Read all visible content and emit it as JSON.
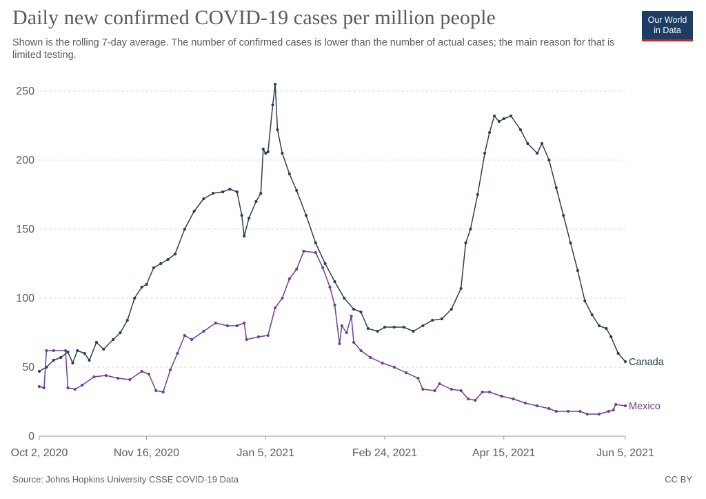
{
  "header": {
    "title": "Daily new confirmed COVID-19 cases per million people",
    "subtitle": "Shown is the rolling 7-day average. The number of confirmed cases is lower than the number of actual cases; the main reason for that is limited testing.",
    "logo_line1": "Our World",
    "logo_line2": "in Data"
  },
  "footer": {
    "source": "Source: Johns Hopkins University CSSE COVID-19 Data",
    "license": "CC BY"
  },
  "colors": {
    "canada": "#2c3e50",
    "mexico": "#6d3e91",
    "grid": "#dddddd",
    "axis": "#5b5b5b"
  },
  "chart_data": {
    "type": "line",
    "title": "Daily new confirmed COVID-19 cases per million people",
    "subtitle": "Shown is the rolling 7-day average. The number of confirmed cases is lower than the number of actual cases; the main reason for that is limited testing.",
    "xlabel": "",
    "ylabel": "",
    "x_range": [
      "2020-10-02",
      "2021-06-05"
    ],
    "ylim": [
      0,
      260
    ],
    "x_ticks": [
      "2020-10-02",
      "2020-11-16",
      "2021-01-05",
      "2021-02-24",
      "2021-04-15",
      "2021-06-05"
    ],
    "x_tick_labels": [
      "Oct 2, 2020",
      "Nov 16, 2020",
      "Jan 5, 2021",
      "Feb 24, 2021",
      "Apr 15, 2021",
      "Jun 5, 2021"
    ],
    "y_ticks": [
      0,
      50,
      100,
      150,
      200,
      250
    ],
    "grid": "horizontal dashed",
    "legend": "line-end labels",
    "series": [
      {
        "name": "Canada",
        "points": [
          [
            "2020-10-02",
            47
          ],
          [
            "2020-10-05",
            50
          ],
          [
            "2020-10-08",
            55
          ],
          [
            "2020-10-11",
            57
          ],
          [
            "2020-10-14",
            61
          ],
          [
            "2020-10-16",
            53
          ],
          [
            "2020-10-18",
            62
          ],
          [
            "2020-10-21",
            60
          ],
          [
            "2020-10-23",
            55
          ],
          [
            "2020-10-26",
            68
          ],
          [
            "2020-10-29",
            63
          ],
          [
            "2020-11-02",
            70
          ],
          [
            "2020-11-05",
            75
          ],
          [
            "2020-11-08",
            84
          ],
          [
            "2020-11-11",
            100
          ],
          [
            "2020-11-14",
            108
          ],
          [
            "2020-11-16",
            110
          ],
          [
            "2020-11-19",
            122
          ],
          [
            "2020-11-22",
            125
          ],
          [
            "2020-11-25",
            128
          ],
          [
            "2020-11-28",
            132
          ],
          [
            "2020-12-02",
            150
          ],
          [
            "2020-12-06",
            163
          ],
          [
            "2020-12-10",
            172
          ],
          [
            "2020-12-14",
            176
          ],
          [
            "2020-12-18",
            177
          ],
          [
            "2020-12-21",
            179
          ],
          [
            "2020-12-24",
            177
          ],
          [
            "2020-12-26",
            160
          ],
          [
            "2020-12-27",
            145
          ],
          [
            "2020-12-29",
            158
          ],
          [
            "2021-01-01",
            170
          ],
          [
            "2021-01-03",
            176
          ],
          [
            "2021-01-04",
            208
          ],
          [
            "2021-01-05",
            205
          ],
          [
            "2021-01-06",
            206
          ],
          [
            "2021-01-08",
            240
          ],
          [
            "2021-01-09",
            255
          ],
          [
            "2021-01-10",
            222
          ],
          [
            "2021-01-12",
            205
          ],
          [
            "2021-01-15",
            190
          ],
          [
            "2021-01-18",
            178
          ],
          [
            "2021-01-22",
            160
          ],
          [
            "2021-01-26",
            140
          ],
          [
            "2021-01-30",
            125
          ],
          [
            "2021-02-03",
            112
          ],
          [
            "2021-02-07",
            100
          ],
          [
            "2021-02-11",
            92
          ],
          [
            "2021-02-14",
            90
          ],
          [
            "2021-02-17",
            78
          ],
          [
            "2021-02-21",
            76
          ],
          [
            "2021-02-24",
            79
          ],
          [
            "2021-02-28",
            79
          ],
          [
            "2021-03-04",
            79
          ],
          [
            "2021-03-08",
            76
          ],
          [
            "2021-03-12",
            80
          ],
          [
            "2021-03-16",
            84
          ],
          [
            "2021-03-20",
            85
          ],
          [
            "2021-03-24",
            92
          ],
          [
            "2021-03-28",
            107
          ],
          [
            "2021-03-30",
            140
          ],
          [
            "2021-04-01",
            150
          ],
          [
            "2021-04-04",
            175
          ],
          [
            "2021-04-07",
            205
          ],
          [
            "2021-04-09",
            220
          ],
          [
            "2021-04-11",
            232
          ],
          [
            "2021-04-13",
            228
          ],
          [
            "2021-04-15",
            230
          ],
          [
            "2021-04-18",
            232
          ],
          [
            "2021-04-22",
            222
          ],
          [
            "2021-04-25",
            212
          ],
          [
            "2021-04-29",
            205
          ],
          [
            "2021-05-01",
            212
          ],
          [
            "2021-05-04",
            200
          ],
          [
            "2021-05-07",
            180
          ],
          [
            "2021-05-10",
            160
          ],
          [
            "2021-05-13",
            140
          ],
          [
            "2021-05-16",
            120
          ],
          [
            "2021-05-19",
            98
          ],
          [
            "2021-05-22",
            88
          ],
          [
            "2021-05-25",
            80
          ],
          [
            "2021-05-28",
            78
          ],
          [
            "2021-05-30",
            72
          ],
          [
            "2021-06-02",
            60
          ],
          [
            "2021-06-05",
            54
          ]
        ],
        "end_value": 54
      },
      {
        "name": "Mexico",
        "points": [
          [
            "2020-10-02",
            36
          ],
          [
            "2020-10-04",
            35
          ],
          [
            "2020-10-05",
            62
          ],
          [
            "2020-10-08",
            62
          ],
          [
            "2020-10-13",
            62
          ],
          [
            "2020-10-14",
            35
          ],
          [
            "2020-10-17",
            34
          ],
          [
            "2020-10-20",
            37
          ],
          [
            "2020-10-25",
            43
          ],
          [
            "2020-10-30",
            44
          ],
          [
            "2020-11-04",
            42
          ],
          [
            "2020-11-09",
            41
          ],
          [
            "2020-11-14",
            47
          ],
          [
            "2020-11-17",
            45
          ],
          [
            "2020-11-20",
            33
          ],
          [
            "2020-11-23",
            32
          ],
          [
            "2020-11-26",
            48
          ],
          [
            "2020-11-29",
            60
          ],
          [
            "2020-12-02",
            73
          ],
          [
            "2020-12-05",
            70
          ],
          [
            "2020-12-10",
            76
          ],
          [
            "2020-12-15",
            82
          ],
          [
            "2020-12-20",
            80
          ],
          [
            "2020-12-24",
            80
          ],
          [
            "2020-12-27",
            82
          ],
          [
            "2020-12-28",
            70
          ],
          [
            "2021-01-02",
            72
          ],
          [
            "2021-01-06",
            73
          ],
          [
            "2021-01-09",
            93
          ],
          [
            "2021-01-12",
            100
          ],
          [
            "2021-01-15",
            114
          ],
          [
            "2021-01-18",
            121
          ],
          [
            "2021-01-21",
            134
          ],
          [
            "2021-01-26",
            133
          ],
          [
            "2021-01-29",
            122
          ],
          [
            "2021-02-01",
            108
          ],
          [
            "2021-02-03",
            95
          ],
          [
            "2021-02-05",
            67
          ],
          [
            "2021-02-06",
            80
          ],
          [
            "2021-02-08",
            75
          ],
          [
            "2021-02-10",
            87
          ],
          [
            "2021-02-11",
            68
          ],
          [
            "2021-02-14",
            62
          ],
          [
            "2021-02-18",
            57
          ],
          [
            "2021-02-23",
            53
          ],
          [
            "2021-02-28",
            50
          ],
          [
            "2021-03-05",
            46
          ],
          [
            "2021-03-10",
            42
          ],
          [
            "2021-03-12",
            34
          ],
          [
            "2021-03-17",
            33
          ],
          [
            "2021-03-19",
            38
          ],
          [
            "2021-03-24",
            34
          ],
          [
            "2021-03-28",
            33
          ],
          [
            "2021-03-31",
            27
          ],
          [
            "2021-04-03",
            26
          ],
          [
            "2021-04-06",
            32
          ],
          [
            "2021-04-09",
            32
          ],
          [
            "2021-04-14",
            29
          ],
          [
            "2021-04-19",
            27
          ],
          [
            "2021-04-24",
            24
          ],
          [
            "2021-04-29",
            22
          ],
          [
            "2021-05-04",
            20
          ],
          [
            "2021-05-07",
            18
          ],
          [
            "2021-05-12",
            18
          ],
          [
            "2021-05-17",
            18
          ],
          [
            "2021-05-20",
            16
          ],
          [
            "2021-05-25",
            16
          ],
          [
            "2021-05-29",
            18
          ],
          [
            "2021-05-31",
            19
          ],
          [
            "2021-06-01",
            23
          ],
          [
            "2021-06-05",
            22
          ]
        ],
        "end_value": 22
      }
    ]
  }
}
